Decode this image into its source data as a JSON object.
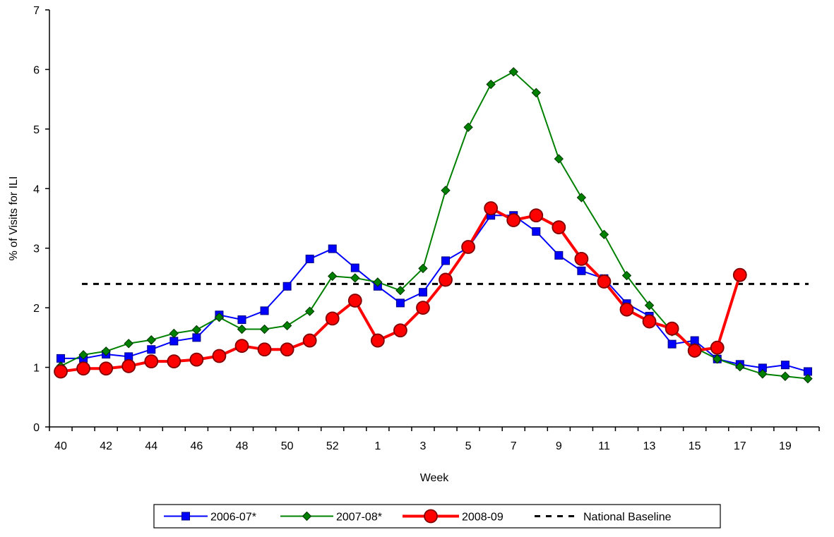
{
  "chart_data": {
    "type": "line",
    "xlabel": "Week",
    "ylabel": "% of Visits for ILI",
    "ylim": [
      0,
      7
    ],
    "yticks": [
      "0",
      "1",
      "2",
      "3",
      "4",
      "5",
      "6",
      "7"
    ],
    "categories": [
      "40",
      "41",
      "42",
      "43",
      "44",
      "45",
      "46",
      "47",
      "48",
      "49",
      "50",
      "51",
      "52",
      "53",
      "1",
      "2",
      "3",
      "4",
      "5",
      "6",
      "7",
      "8",
      "9",
      "10",
      "11",
      "12",
      "13",
      "14",
      "15",
      "16",
      "17",
      "18",
      "19",
      "20"
    ],
    "xtick_labels": [
      "40",
      "",
      "42",
      "",
      "44",
      "",
      "46",
      "",
      "48",
      "",
      "50",
      "",
      "52",
      "",
      "1",
      "",
      "3",
      "",
      "5",
      "",
      "7",
      "",
      "9",
      "",
      "11",
      "",
      "13",
      "",
      "15",
      "",
      "17",
      "",
      "19",
      ""
    ],
    "grid": false,
    "legend_position": "bottom",
    "series": [
      {
        "name": "2006-07*",
        "color": "#0000ff",
        "marker": "square",
        "values": [
          1.15,
          1.15,
          1.22,
          1.18,
          1.3,
          1.44,
          1.5,
          1.88,
          1.8,
          1.95,
          2.36,
          2.82,
          2.99,
          2.67,
          2.36,
          2.08,
          2.26,
          2.79,
          3.01,
          3.55,
          3.55,
          3.28,
          2.88,
          2.62,
          2.49,
          2.07,
          1.86,
          1.39,
          1.45,
          1.14,
          1.05,
          0.99,
          1.04,
          0.93
        ]
      },
      {
        "name": "2007-08*",
        "color": "#008000",
        "marker": "diamond",
        "values": [
          1.02,
          1.21,
          1.27,
          1.4,
          1.46,
          1.57,
          1.63,
          1.84,
          1.64,
          1.64,
          1.7,
          1.94,
          2.53,
          2.5,
          2.43,
          2.29,
          2.66,
          3.97,
          5.03,
          5.75,
          5.96,
          5.61,
          4.5,
          3.85,
          3.23,
          2.54,
          2.04,
          1.6,
          1.33,
          1.14,
          1.01,
          0.89,
          0.85,
          0.81
        ]
      },
      {
        "name": "2008-09",
        "color": "#ff0000",
        "marker": "circle",
        "values": [
          0.93,
          0.98,
          0.98,
          1.02,
          1.1,
          1.1,
          1.13,
          1.19,
          1.36,
          1.3,
          1.3,
          1.45,
          1.82,
          2.12,
          1.45,
          1.62,
          2.0,
          2.47,
          3.02,
          3.67,
          3.47,
          3.55,
          3.35,
          2.82,
          2.44,
          1.97,
          1.77,
          1.65,
          1.28,
          1.33,
          2.55,
          null,
          null,
          null
        ]
      },
      {
        "name": "National Baseline",
        "color": "#000000",
        "style": "dashed",
        "value": 2.4
      }
    ]
  }
}
